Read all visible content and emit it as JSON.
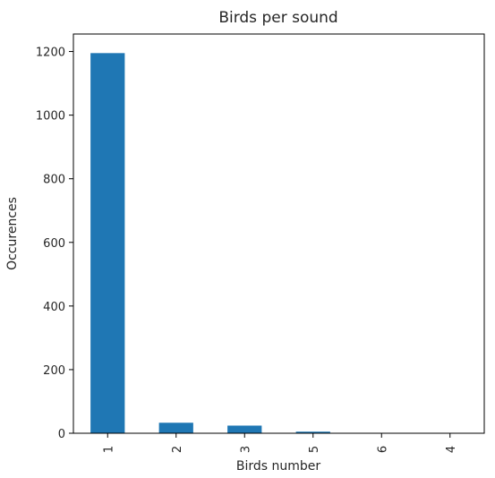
{
  "chart_data": {
    "type": "bar",
    "title": "Birds per sound",
    "xlabel": "Birds number",
    "ylabel": "Occurences",
    "categories": [
      "1",
      "2",
      "3",
      "5",
      "6",
      "4"
    ],
    "values": [
      1195,
      33,
      24,
      5,
      1,
      1
    ],
    "ylim": [
      0,
      1255
    ],
    "yticks": [
      0,
      200,
      400,
      600,
      800,
      1000,
      1200
    ],
    "grid": false,
    "bar_color": "#1f77b4"
  }
}
